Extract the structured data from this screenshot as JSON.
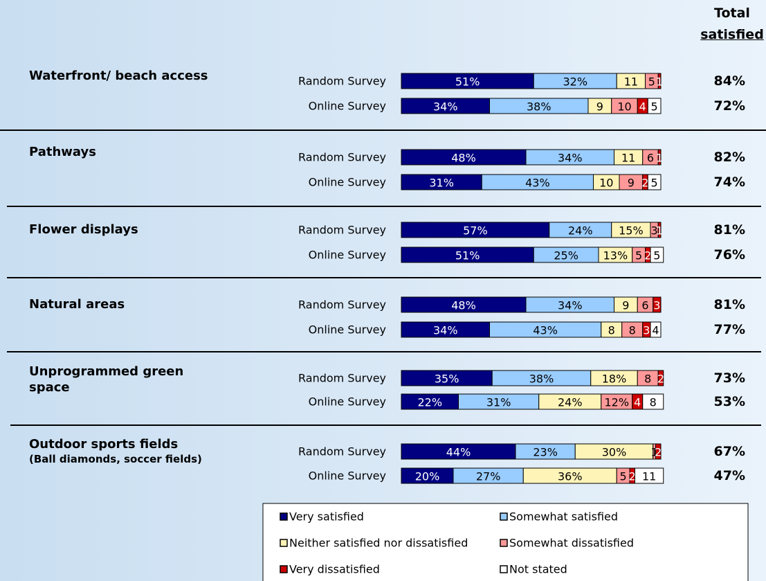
{
  "chart_data": {
    "type": "bar",
    "orientation": "horizontal",
    "stacked": true,
    "xlim": [
      0,
      100
    ],
    "totals_header": [
      "Total",
      "satisfied"
    ],
    "groups": [
      {
        "name": "Waterfront/ beach access"
      },
      {
        "name": "Pathways"
      },
      {
        "name": "Flower displays"
      },
      {
        "name": "Natural areas"
      },
      {
        "name": "Unprogrammed green space"
      },
      {
        "name": "Outdoor sports fields",
        "note": "(Ball diamonds, soccer fields)"
      }
    ],
    "categories": [
      "Random Survey",
      "Online Survey",
      "Random Survey",
      "Online Survey",
      "Random Survey",
      "Online Survey",
      "Random Survey",
      "Online Survey",
      "Random Survey",
      "Online Survey",
      "Random Survey",
      "Online Survey"
    ],
    "series": [
      {
        "name": "Very satisfied",
        "color": "#000080",
        "values": [
          51,
          34,
          48,
          31,
          57,
          51,
          48,
          34,
          35,
          22,
          44,
          20
        ],
        "value_labels": [
          "51%",
          "34%",
          "48%",
          "31%",
          "57%",
          "51%",
          "48%",
          "34%",
          "35%",
          "22%",
          "44%",
          "20%"
        ]
      },
      {
        "name": "Somewhat satisfied",
        "color": "#99ccff",
        "values": [
          32,
          38,
          34,
          43,
          24,
          25,
          34,
          43,
          38,
          31,
          23,
          27
        ],
        "value_labels": [
          "32%",
          "38%",
          "34%",
          "43%",
          "24%",
          "25%",
          "34%",
          "43%",
          "38%",
          "31%",
          "23%",
          "27%"
        ]
      },
      {
        "name": "Neither satisfied nor dissatisfied",
        "color": "#fff4b8",
        "values": [
          11,
          9,
          11,
          10,
          15,
          13,
          9,
          8,
          18,
          24,
          30,
          36
        ],
        "value_labels": [
          "11",
          "9",
          "11",
          "10",
          "15%",
          "13%",
          "9",
          "8",
          "18%",
          "24%",
          "30%",
          "36%"
        ]
      },
      {
        "name": "Somewhat dissatisfied",
        "color": "#ff9999",
        "values": [
          5,
          10,
          6,
          9,
          3,
          5,
          6,
          8,
          8,
          12,
          1,
          5
        ],
        "value_labels": [
          "5",
          "10",
          "6",
          "9",
          "3",
          "5",
          "6",
          "8",
          "8",
          "12%",
          "1",
          "5"
        ]
      },
      {
        "name": "Very dissatisfied",
        "color": "#cc0000",
        "values": [
          1,
          4,
          1,
          2,
          1,
          2,
          3,
          3,
          2,
          4,
          2,
          2
        ],
        "value_labels": [
          "1",
          "4",
          "1",
          "2",
          "1",
          "2",
          "3",
          "3",
          "2",
          "4",
          "2",
          "2"
        ]
      },
      {
        "name": "Not stated",
        "color": "#ffffff",
        "values": [
          null,
          5,
          null,
          5,
          null,
          5,
          null,
          4,
          null,
          8,
          null,
          11
        ],
        "value_labels": [
          null,
          "5",
          null,
          "5",
          null,
          "5",
          null,
          "4",
          null,
          "8",
          null,
          "11"
        ]
      }
    ],
    "totals": {
      "values": [
        84,
        72,
        82,
        74,
        81,
        76,
        81,
        77,
        73,
        53,
        67,
        47
      ],
      "value_labels": [
        "84%",
        "72%",
        "82%",
        "74%",
        "81%",
        "76%",
        "81%",
        "77%",
        "73%",
        "53%",
        "67%",
        "47%"
      ]
    }
  }
}
